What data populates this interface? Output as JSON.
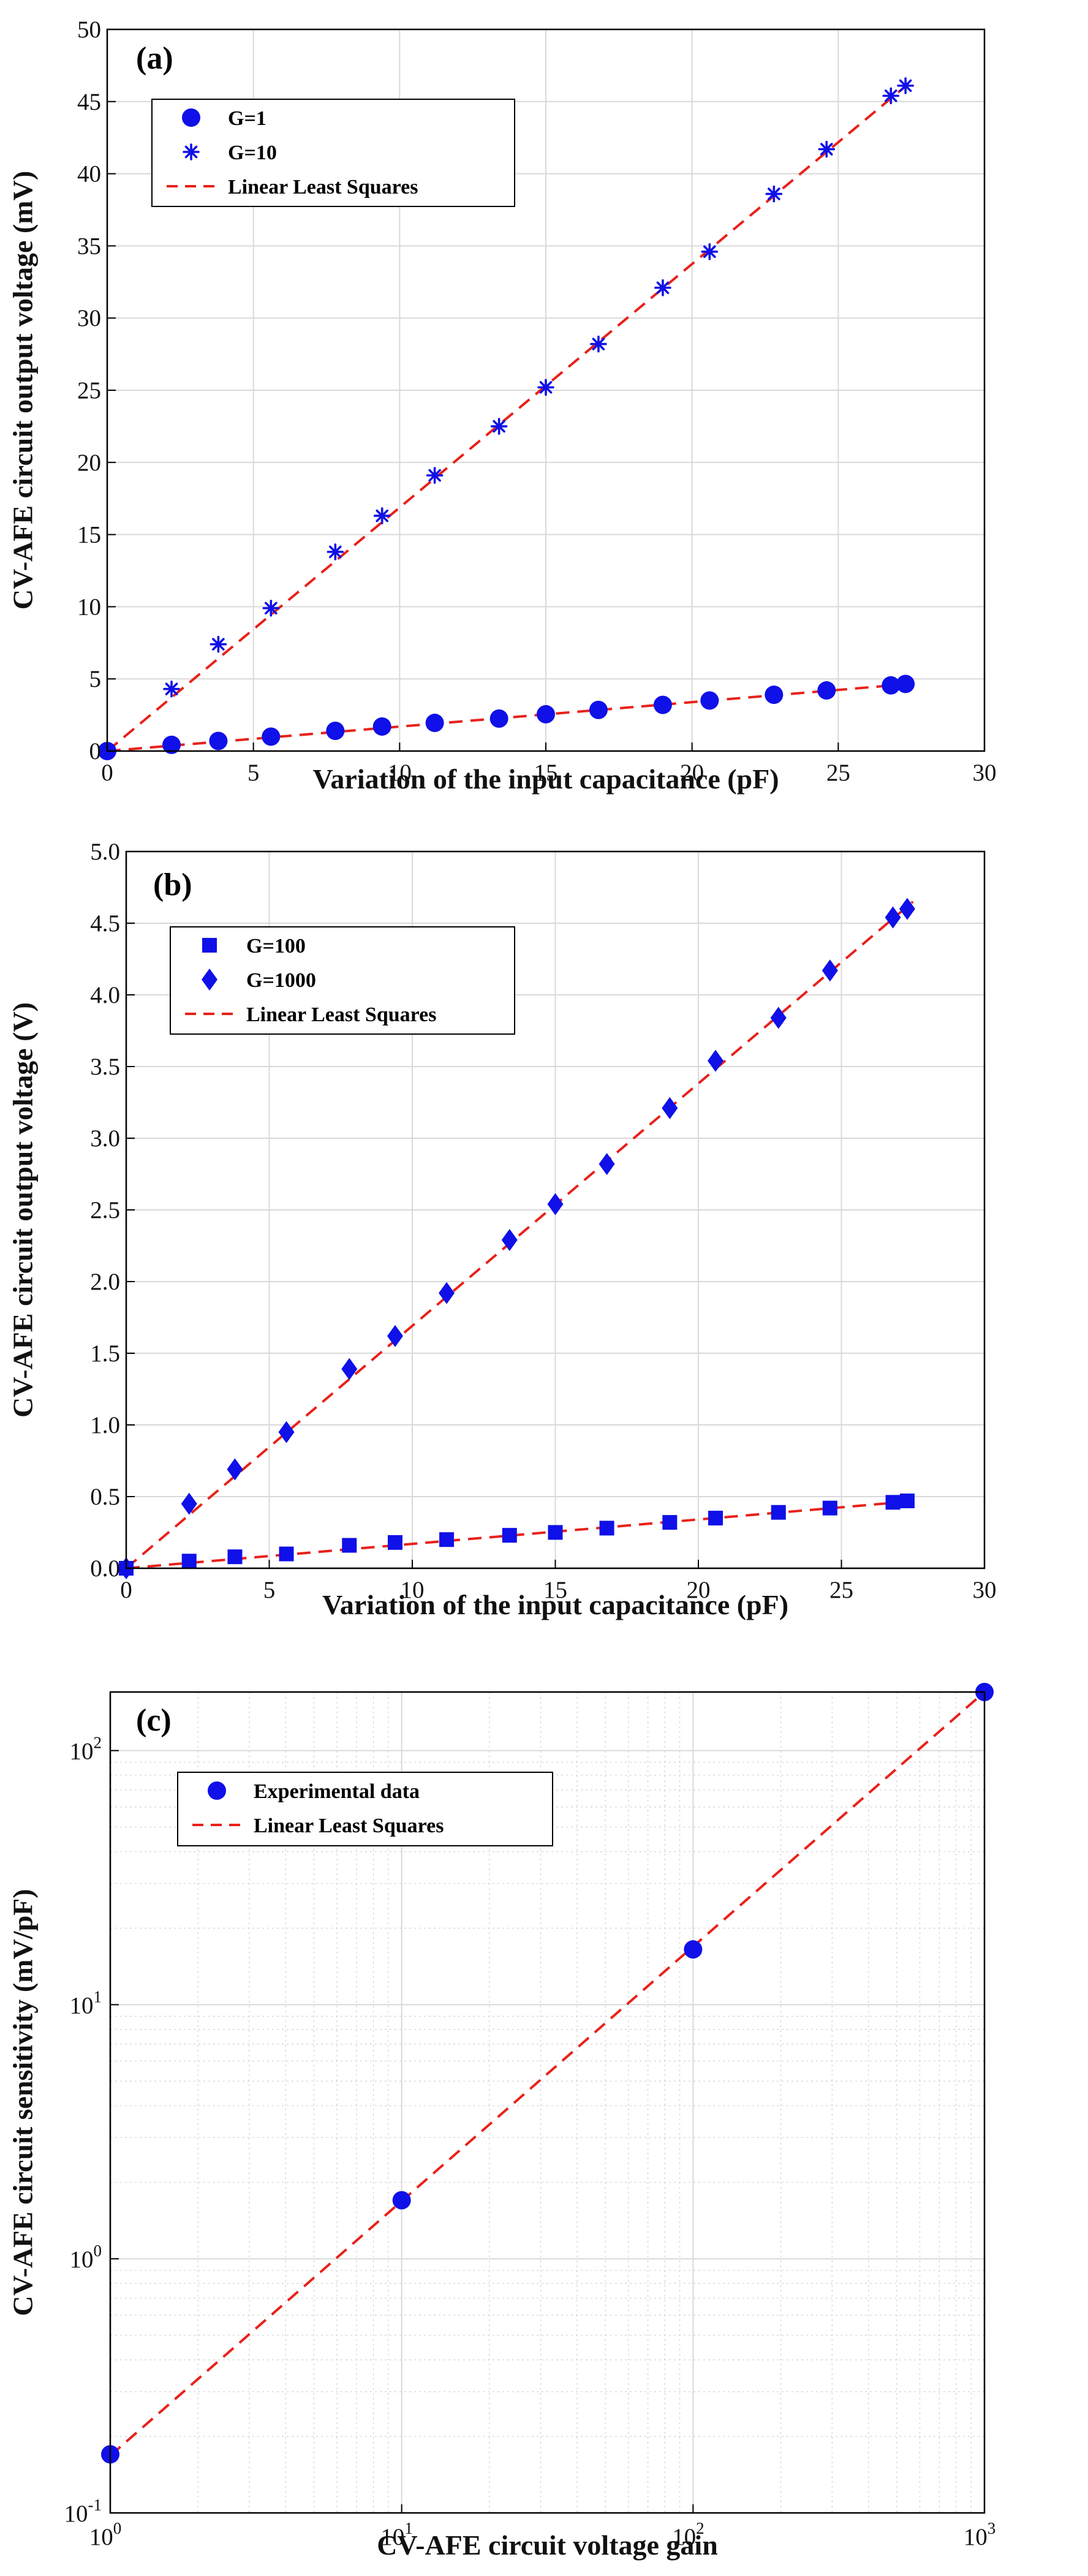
{
  "colors": {
    "marker": "#1010e8",
    "fit_line": "#e8211a",
    "grid": "#d9d9d9",
    "frame": "#000000"
  },
  "chart_data": [
    {
      "panel": "(a)",
      "type": "scatter",
      "xlabel": "Variation of the input capacitance (pF)",
      "ylabel": "CV-AFE circuit output voltage  (mV)",
      "xlim": [
        0,
        30
      ],
      "ylim": [
        0,
        50
      ],
      "xticks": [
        0,
        5,
        10,
        15,
        20,
        25,
        30
      ],
      "yticks": [
        0,
        5,
        10,
        15,
        20,
        25,
        30,
        35,
        40,
        45,
        50
      ],
      "grid": true,
      "legend_position": "top-left",
      "series": [
        {
          "name": "G=1",
          "marker": "circle",
          "x": [
            0,
            2.2,
            3.8,
            5.6,
            7.8,
            9.4,
            11.2,
            13.4,
            15.0,
            16.8,
            19.0,
            20.6,
            22.8,
            24.6,
            26.8,
            27.3
          ],
          "y": [
            0,
            0.43,
            0.7,
            1.0,
            1.4,
            1.7,
            1.95,
            2.25,
            2.55,
            2.85,
            3.2,
            3.5,
            3.9,
            4.2,
            4.55,
            4.65
          ]
        },
        {
          "name": "G=10",
          "marker": "asterisk",
          "x": [
            0,
            2.2,
            3.8,
            5.6,
            7.8,
            9.4,
            11.2,
            13.4,
            15.0,
            16.8,
            19.0,
            20.6,
            22.8,
            24.6,
            26.8,
            27.3
          ],
          "y": [
            0,
            4.3,
            7.4,
            9.9,
            13.8,
            16.3,
            19.1,
            22.5,
            25.2,
            28.2,
            32.1,
            34.6,
            38.6,
            41.7,
            45.4,
            46.1
          ]
        },
        {
          "name": "Linear Least Squares",
          "marker": "dashed-line",
          "lines": [
            {
              "x": [
                0,
                27.5
              ],
              "y": [
                0,
                4.66
              ]
            },
            {
              "x": [
                0,
                27.5
              ],
              "y": [
                0,
                46.4
              ]
            }
          ]
        }
      ]
    },
    {
      "panel": "(b)",
      "type": "scatter",
      "xlabel": "Variation of the input capacitance (pF)",
      "ylabel": "CV-AFE circuit output voltage  (V)",
      "xlim": [
        0,
        30
      ],
      "ylim": [
        0,
        5
      ],
      "xticks": [
        0,
        5,
        10,
        15,
        20,
        25,
        30
      ],
      "yticks": [
        0,
        0.5,
        1.0,
        1.5,
        2.0,
        2.5,
        3.0,
        3.5,
        4.0,
        4.5,
        5.0
      ],
      "grid": true,
      "legend_position": "top-left",
      "series": [
        {
          "name": "G=100",
          "marker": "square",
          "x": [
            0,
            2.2,
            3.8,
            5.6,
            7.8,
            9.4,
            11.2,
            13.4,
            15.0,
            16.8,
            19.0,
            20.6,
            22.8,
            24.6,
            26.8,
            27.3
          ],
          "y": [
            0,
            0.05,
            0.08,
            0.1,
            0.16,
            0.18,
            0.2,
            0.23,
            0.25,
            0.28,
            0.32,
            0.35,
            0.39,
            0.42,
            0.46,
            0.47
          ]
        },
        {
          "name": "G=1000",
          "marker": "diamond",
          "x": [
            0,
            2.2,
            3.8,
            5.6,
            7.8,
            9.4,
            11.2,
            13.4,
            15.0,
            16.8,
            19.0,
            20.6,
            22.8,
            24.6,
            26.8,
            27.3
          ],
          "y": [
            0,
            0.45,
            0.69,
            0.95,
            1.39,
            1.62,
            1.92,
            2.29,
            2.54,
            2.82,
            3.21,
            3.54,
            3.84,
            4.17,
            4.54,
            4.6
          ]
        },
        {
          "name": "Linear Least Squares",
          "marker": "dashed-line",
          "lines": [
            {
              "x": [
                0,
                27.5
              ],
              "y": [
                0,
                0.468
              ]
            },
            {
              "x": [
                0,
                27.5
              ],
              "y": [
                0,
                4.65
              ]
            }
          ]
        }
      ]
    },
    {
      "panel": "(c)",
      "type": "scatter",
      "scale": "log-log",
      "xlabel": "CV-AFE circuit voltage gain",
      "ylabel": "CV-AFE circuit sensitivity (mV/pF)",
      "xlim": [
        1,
        1000
      ],
      "ylim": [
        0.1,
        170
      ],
      "xticks": [
        {
          "value": 1,
          "base": "10",
          "exp": "0"
        },
        {
          "value": 10,
          "base": "10",
          "exp": "1"
        },
        {
          "value": 100,
          "base": "10",
          "exp": "2"
        },
        {
          "value": 1000,
          "base": "10",
          "exp": "3"
        }
      ],
      "yticks": [
        {
          "value": 0.1,
          "base": "10",
          "exp": "-1"
        },
        {
          "value": 1,
          "base": "10",
          "exp": "0"
        },
        {
          "value": 10,
          "base": "10",
          "exp": "1"
        },
        {
          "value": 100,
          "base": "10",
          "exp": "2"
        }
      ],
      "grid": true,
      "legend_position": "top-left",
      "series": [
        {
          "name": "Experimental data",
          "marker": "circle",
          "x": [
            1,
            10,
            100,
            1000
          ],
          "y": [
            0.17,
            1.7,
            16.5,
            170
          ]
        },
        {
          "name": "Linear Least Squares",
          "marker": "dashed-line",
          "lines": [
            {
              "x": [
                1,
                1000
              ],
              "y": [
                0.168,
                170
              ]
            }
          ]
        }
      ]
    }
  ]
}
